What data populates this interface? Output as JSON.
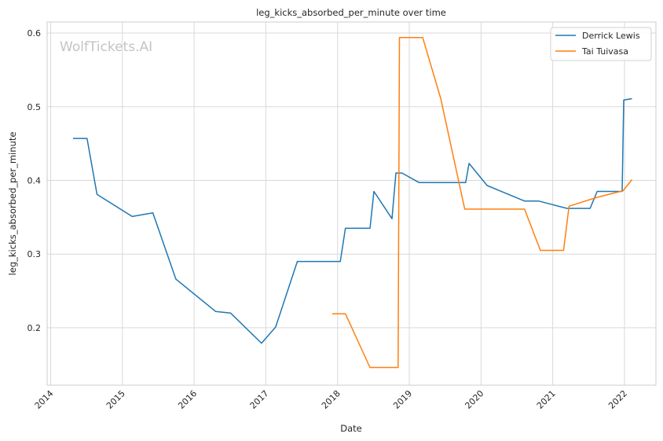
{
  "chart_data": {
    "type": "line",
    "title": "leg_kicks_absorbed_per_minute over time",
    "xlabel": "Date",
    "ylabel": "leg_kicks_absorbed_per_minute",
    "watermark": "WolfTickets.AI",
    "x_ticks": [
      "2014",
      "2015",
      "2016",
      "2017",
      "2018",
      "2019",
      "2020",
      "2021",
      "2022"
    ],
    "y_ticks": [
      "0.2",
      "0.3",
      "0.4",
      "0.5",
      "0.6"
    ],
    "xlim": [
      "2013-12-14",
      "2022-06-10"
    ],
    "ylim": [
      0.122,
      0.615
    ],
    "grid": true,
    "legend_position": "top-right",
    "series": [
      {
        "name": "Derrick Lewis",
        "color": "#1f77b4",
        "points": [
          [
            "2014-04-25",
            0.457
          ],
          [
            "2014-07-05",
            0.457
          ],
          [
            "2014-08-25",
            0.381
          ],
          [
            "2015-02-20",
            0.351
          ],
          [
            "2015-06-05",
            0.356
          ],
          [
            "2015-09-30",
            0.266
          ],
          [
            "2016-04-20",
            0.222
          ],
          [
            "2016-07-05",
            0.22
          ],
          [
            "2016-12-10",
            0.179
          ],
          [
            "2017-02-20",
            0.201
          ],
          [
            "2017-06-10",
            0.29
          ],
          [
            "2018-01-15",
            0.29
          ],
          [
            "2018-02-10",
            0.335
          ],
          [
            "2018-06-15",
            0.335
          ],
          [
            "2018-07-05",
            0.385
          ],
          [
            "2018-10-05",
            0.348
          ],
          [
            "2018-10-25",
            0.41
          ],
          [
            "2018-11-25",
            0.41
          ],
          [
            "2019-02-20",
            0.397
          ],
          [
            "2019-10-15",
            0.397
          ],
          [
            "2019-11-01",
            0.423
          ],
          [
            "2020-02-01",
            0.393
          ],
          [
            "2020-08-10",
            0.372
          ],
          [
            "2020-10-20",
            0.372
          ],
          [
            "2021-03-15",
            0.362
          ],
          [
            "2021-07-10",
            0.362
          ],
          [
            "2021-08-15",
            0.385
          ],
          [
            "2021-12-20",
            0.385
          ],
          [
            "2021-12-28",
            0.509
          ],
          [
            "2022-02-08",
            0.511
          ]
        ]
      },
      {
        "name": "Tai Tuivasa",
        "color": "#ff7f0e",
        "points": [
          [
            "2017-12-05",
            0.219
          ],
          [
            "2018-02-10",
            0.219
          ],
          [
            "2018-06-15",
            0.146
          ],
          [
            "2018-11-05",
            0.146
          ],
          [
            "2018-11-12",
            0.594
          ],
          [
            "2019-03-10",
            0.594
          ],
          [
            "2019-06-10",
            0.511
          ],
          [
            "2019-10-10",
            0.361
          ],
          [
            "2020-08-10",
            0.361
          ],
          [
            "2020-10-30",
            0.305
          ],
          [
            "2021-02-25",
            0.305
          ],
          [
            "2021-03-25",
            0.365
          ],
          [
            "2021-08-15",
            0.377
          ],
          [
            "2021-12-25",
            0.386
          ],
          [
            "2022-02-08",
            0.401
          ]
        ]
      }
    ]
  }
}
